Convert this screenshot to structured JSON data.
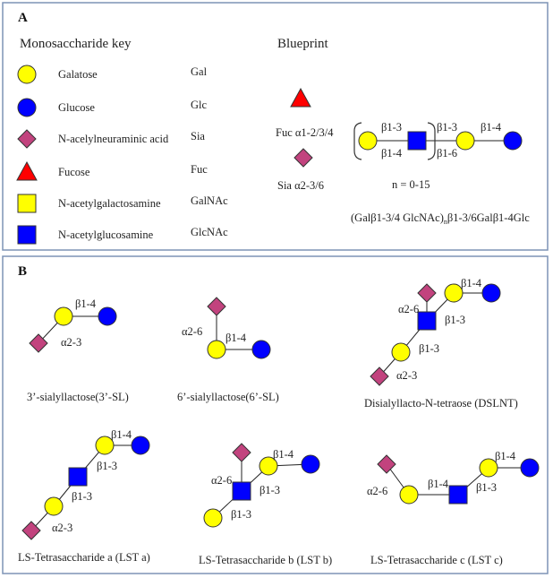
{
  "panel_a": {
    "label": "A",
    "key_title": "Monosaccharide key",
    "key": [
      {
        "shape": "circle",
        "color": "#ffff00",
        "name": "Galatose",
        "abbr": "Gal"
      },
      {
        "shape": "circle",
        "color": "#0000ff",
        "name": "Glucose",
        "abbr": "Glc"
      },
      {
        "shape": "diamond",
        "color": "#c2437e",
        "name": "N-acelylneuraminic acid",
        "abbr": "Sia"
      },
      {
        "shape": "triangle",
        "color": "#ff0000",
        "name": "Fucose",
        "abbr": "Fuc"
      },
      {
        "shape": "square",
        "color": "#ffff00",
        "name": "N-acetylgalactosamine",
        "abbr": "GalNAc"
      },
      {
        "shape": "square",
        "color": "#0000ff",
        "name": "N-acetylglucosamine",
        "abbr": "GlcNAc"
      }
    ],
    "blueprint_title": "Blueprint",
    "fuc_label": "Fuc α1-2/3/4",
    "sia_label": "Sia α2-3/6",
    "links": [
      "β1-3",
      "β1-4",
      "β1-3",
      "β1-6",
      "β1-4"
    ],
    "repeat": "n = 0-15",
    "formula_pre": "(Galβ1-3/4 GlcNAc)",
    "formula_sub": "n",
    "formula_post": "β1-3/6Galβ1-4Glc"
  },
  "panel_b": {
    "label": "B",
    "structures": [
      {
        "name": "3’-sialyllactose(3’-SL)",
        "links": [
          "β1-4",
          "α2-3"
        ]
      },
      {
        "name": "6’-sialyllactose(6’-SL)",
        "links": [
          "α2-6",
          "β1-4"
        ]
      },
      {
        "name": "Disialyllacto-N-tetraose (DSLNT)",
        "links": [
          "β1-4",
          "α2-6",
          "β1-3",
          "β1-3",
          "α2-3"
        ]
      },
      {
        "name": "LS-Tetrasaccharide a (LST a)",
        "links": [
          "β1-4",
          "β1-3",
          "β1-3",
          "α2-3"
        ]
      },
      {
        "name": "LS-Tetrasaccharide b (LST b)",
        "links": [
          "β1-4",
          "α2-6",
          "β1-3",
          "β1-3"
        ]
      },
      {
        "name": "LS-Tetrasaccharide c (LST c)",
        "links": [
          "α2-6",
          "β1-4",
          "β1-3",
          "β1-4"
        ]
      }
    ]
  },
  "colors": {
    "gal": "#ffff00",
    "glc": "#0000ff",
    "sia": "#c2437e",
    "fuc": "#ff0000",
    "glcnac": "#0000ff",
    "border": "#7d93b5"
  }
}
